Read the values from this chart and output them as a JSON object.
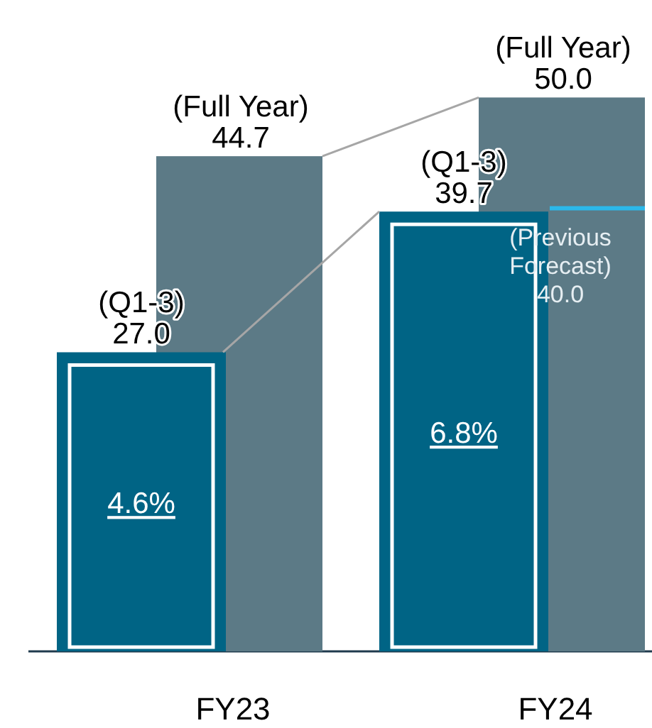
{
  "chart_data": {
    "type": "bar",
    "categories": [
      "FY23",
      "FY24"
    ],
    "series": [
      {
        "name": "(Q1-3)",
        "color": "#006485",
        "values": [
          27.0,
          39.7
        ],
        "value_labels": [
          "27.0",
          "39.7"
        ]
      },
      {
        "name": "(Full Year)",
        "color": "#5c7a86",
        "values": [
          44.7,
          50.0
        ],
        "value_labels": [
          "44.7",
          "50.0"
        ]
      }
    ],
    "ref_lines": [
      {
        "axis": "y",
        "value": 40.0,
        "label": "(Previous Forecast) 40.0",
        "color": "#2bb8ea"
      }
    ],
    "annotations": [
      "4.6%",
      "6.8%"
    ]
  }
}
